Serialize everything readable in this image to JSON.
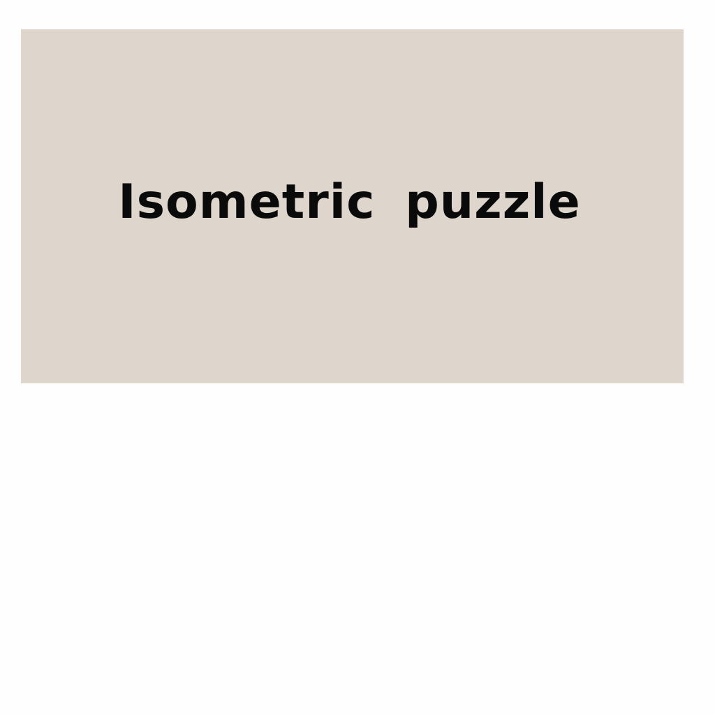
{
  "screen": {
    "title": "Isometric  puzzle"
  },
  "colors": {
    "banner_background": "#ded5cc",
    "page_background": "#fefefe",
    "title_text": "#0a0a0a"
  }
}
